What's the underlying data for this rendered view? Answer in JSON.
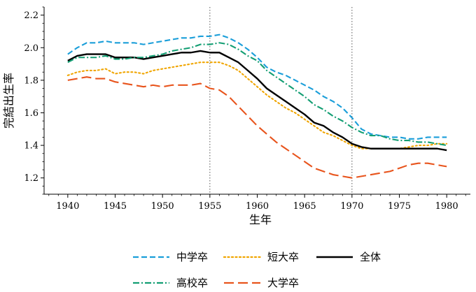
{
  "chart_data": {
    "type": "line",
    "title": "",
    "xlabel": "生年",
    "ylabel": "完結出生率",
    "xlim": [
      1937.5,
      1982.5
    ],
    "ylim": [
      1.1,
      2.25
    ],
    "xticks": [
      1940,
      1945,
      1950,
      1955,
      1960,
      1965,
      1970,
      1975,
      1980
    ],
    "yticks": [
      1.2,
      1.4,
      1.6,
      1.8,
      2.0,
      2.2
    ],
    "vlines": [
      1955,
      1970
    ],
    "legend_position": "bottom",
    "x": [
      1940,
      1941,
      1942,
      1943,
      1944,
      1945,
      1946,
      1947,
      1948,
      1949,
      1950,
      1951,
      1952,
      1953,
      1954,
      1955,
      1956,
      1957,
      1958,
      1959,
      1960,
      1961,
      1962,
      1963,
      1964,
      1965,
      1966,
      1967,
      1968,
      1969,
      1970,
      1971,
      1972,
      1973,
      1974,
      1975,
      1976,
      1977,
      1978,
      1979,
      1980
    ],
    "series": [
      {
        "name": "中学卒",
        "color": "#1a9ed9",
        "dash": "dashed",
        "values": [
          1.96,
          2.0,
          2.03,
          2.03,
          2.04,
          2.03,
          2.03,
          2.03,
          2.02,
          2.03,
          2.04,
          2.05,
          2.06,
          2.06,
          2.07,
          2.07,
          2.08,
          2.06,
          2.03,
          1.99,
          1.94,
          1.88,
          1.85,
          1.83,
          1.8,
          1.77,
          1.74,
          1.7,
          1.67,
          1.63,
          1.57,
          1.5,
          1.47,
          1.46,
          1.45,
          1.45,
          1.44,
          1.44,
          1.45,
          1.45,
          1.45
        ]
      },
      {
        "name": "短大卒",
        "color": "#f0a500",
        "dash": "dotted",
        "values": [
          1.83,
          1.85,
          1.86,
          1.86,
          1.87,
          1.84,
          1.85,
          1.85,
          1.84,
          1.86,
          1.87,
          1.88,
          1.89,
          1.9,
          1.91,
          1.91,
          1.91,
          1.89,
          1.86,
          1.81,
          1.76,
          1.71,
          1.67,
          1.63,
          1.6,
          1.56,
          1.52,
          1.48,
          1.46,
          1.43,
          1.4,
          1.38,
          1.38,
          1.38,
          1.38,
          1.38,
          1.39,
          1.4,
          1.4,
          1.41,
          1.41
        ]
      },
      {
        "name": "全体",
        "color": "#000000",
        "dash": "solid",
        "values": [
          1.92,
          1.95,
          1.96,
          1.96,
          1.96,
          1.94,
          1.94,
          1.94,
          1.93,
          1.94,
          1.95,
          1.96,
          1.97,
          1.97,
          1.98,
          1.97,
          1.97,
          1.94,
          1.91,
          1.86,
          1.81,
          1.75,
          1.71,
          1.67,
          1.63,
          1.59,
          1.54,
          1.52,
          1.48,
          1.45,
          1.41,
          1.39,
          1.38,
          1.38,
          1.38,
          1.38,
          1.38,
          1.38,
          1.38,
          1.38,
          1.37
        ]
      },
      {
        "name": "高校卒",
        "color": "#139e73",
        "dash": "dashdot",
        "values": [
          1.91,
          1.94,
          1.94,
          1.94,
          1.95,
          1.93,
          1.93,
          1.94,
          1.94,
          1.95,
          1.96,
          1.98,
          1.99,
          2.0,
          2.02,
          2.02,
          2.03,
          2.02,
          1.99,
          1.95,
          1.92,
          1.86,
          1.82,
          1.78,
          1.74,
          1.7,
          1.65,
          1.62,
          1.58,
          1.55,
          1.51,
          1.48,
          1.46,
          1.46,
          1.44,
          1.43,
          1.43,
          1.42,
          1.42,
          1.41,
          1.4
        ]
      },
      {
        "name": "大学卒",
        "color": "#e8541c",
        "dash": "longdash",
        "values": [
          1.8,
          1.81,
          1.82,
          1.81,
          1.81,
          1.79,
          1.78,
          1.77,
          1.76,
          1.77,
          1.76,
          1.77,
          1.77,
          1.77,
          1.78,
          1.75,
          1.74,
          1.7,
          1.64,
          1.58,
          1.52,
          1.47,
          1.42,
          1.38,
          1.34,
          1.3,
          1.26,
          1.24,
          1.22,
          1.21,
          1.2,
          1.21,
          1.22,
          1.23,
          1.24,
          1.26,
          1.28,
          1.29,
          1.29,
          1.28,
          1.27
        ]
      }
    ]
  }
}
